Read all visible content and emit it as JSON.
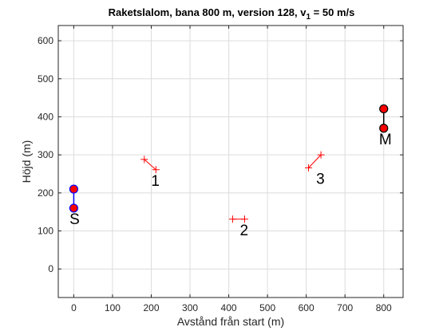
{
  "chart_data": {
    "type": "scatter",
    "title_main": "Raketslalom, bana 800 m, version 128, v",
    "title_sub": "1",
    "title_tail": " = 50 m/s",
    "xlabel": "Avstånd från start (m)",
    "ylabel": "Höjd (m)",
    "xlim": [
      -40,
      850
    ],
    "ylim": [
      -75,
      640
    ],
    "xticks": [
      0,
      100,
      200,
      300,
      400,
      500,
      600,
      700,
      800
    ],
    "yticks": [
      0,
      100,
      200,
      300,
      400,
      500,
      600
    ],
    "grid": true,
    "start": {
      "label": "S",
      "x": 0,
      "y_top": 210,
      "y_bottom": 160,
      "line_color": "#0000ff",
      "marker_color": "#ff0000",
      "edge_color": "#0000ff"
    },
    "finish": {
      "label": "M",
      "x": 800,
      "y_top": 421,
      "y_bottom": 370,
      "line_color": "#000000",
      "marker_color": "#ff0000",
      "edge_color": "#000000"
    },
    "gates": [
      {
        "label": "1",
        "x1": 182,
        "y1": 288,
        "x2": 212,
        "y2": 261
      },
      {
        "label": "2",
        "x1": 410,
        "y1": 131,
        "x2": 441,
        "y2": 131
      },
      {
        "label": "3",
        "x1": 606,
        "y1": 266,
        "x2": 638,
        "y2": 300
      }
    ],
    "gate_color": "#ff0000"
  }
}
